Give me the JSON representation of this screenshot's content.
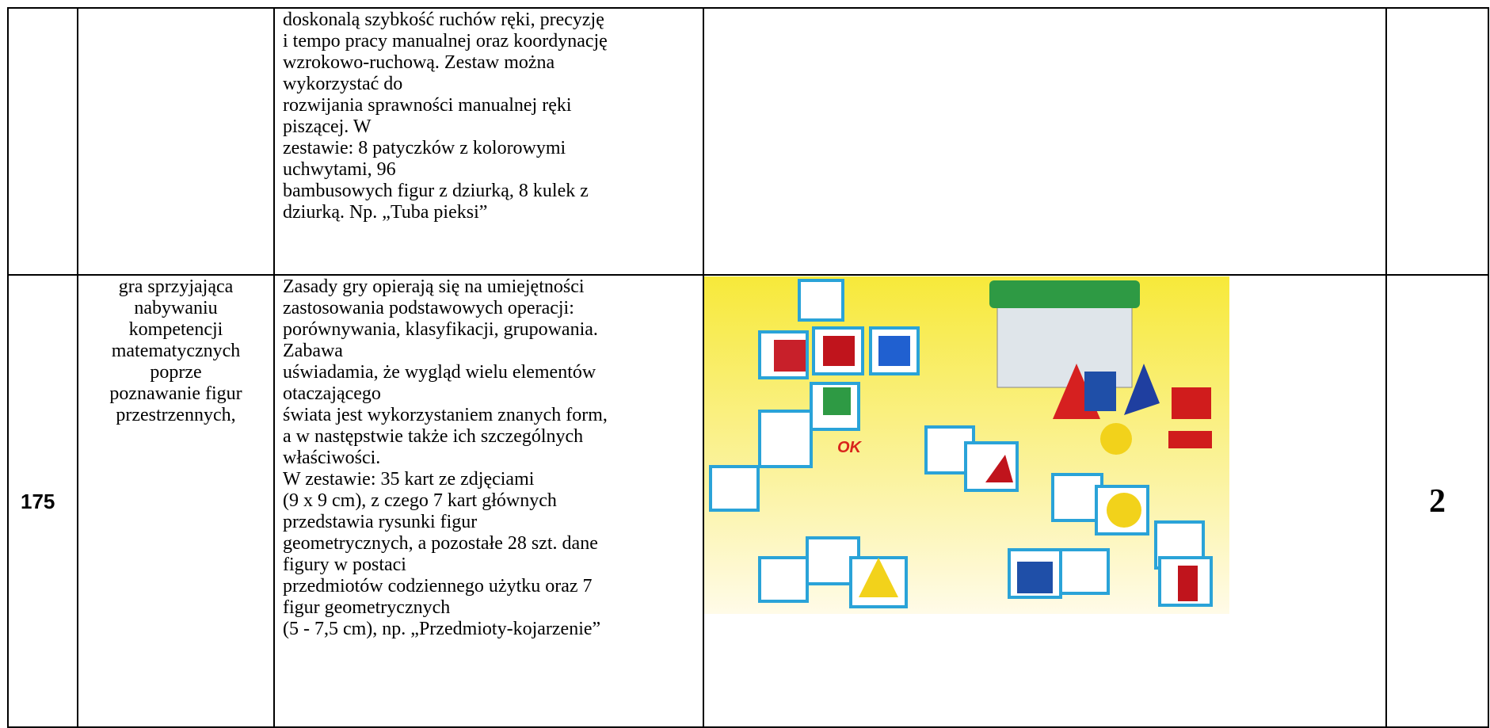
{
  "table": {
    "rows": [
      {
        "description": [
          "doskonalą szybkość ruchów ręki, precyzję",
          "i tempo pracy manualnej oraz koordynację",
          "wzrokowo-ruchową. Zestaw można",
          "wykorzystać do",
          "rozwijania sprawności manualnej ręki",
          "piszącej. W",
          "zestawie: 8 patyczków z kolorowymi",
          "uchwytami, 96",
          "bambusowych figur z dziurką, 8 kulek z",
          "dziurką. Np. „Tuba pieksi”"
        ]
      },
      {
        "number": "175",
        "name": [
          "gra sprzyjająca",
          "nabywaniu",
          "kompetencji",
          "matematycznych",
          "poprze",
          "poznawanie figur",
          "przestrzennych,"
        ],
        "description": [
          "Zasady gry opierają się na umiejętności",
          "zastosowania podstawowych operacji:",
          "porównywania, klasyfikacji, grupowania.",
          "Zabawa",
          "uświadamia, że wygląd wielu elementów",
          "otaczającego",
          "świata jest wykorzystaniem znanych form,",
          "a w następstwie także ich szczególnych",
          "właściwości.",
          "W zestawie: 35 kart ze zdjęciami",
          "(9 x 9 cm), z czego 7 kart głównych",
          "przedstawia rysunki figur",
          "geometrycznych, a pozostałe 28 szt. dane",
          "figury w postaci",
          "przedmiotów codziennego użytku oraz 7",
          "figur geometrycznych",
          "(5 - 7,5 cm), np. „Przedmioty-kojarzenie”"
        ],
        "quantity": "2"
      }
    ]
  }
}
